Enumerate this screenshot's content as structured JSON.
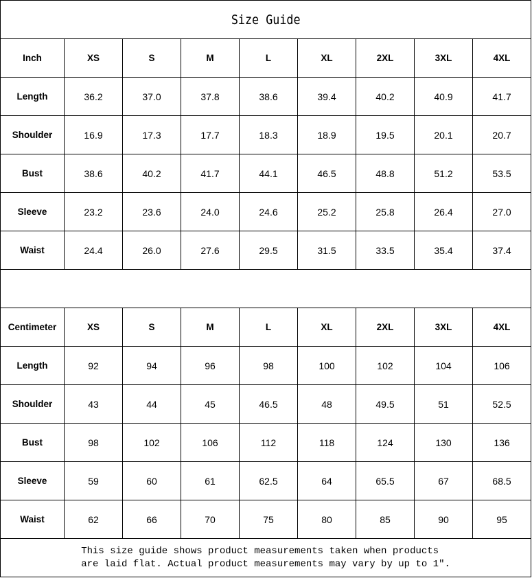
{
  "title": "Size Guide",
  "sizes": [
    "XS",
    "S",
    "M",
    "L",
    "XL",
    "2XL",
    "3XL",
    "4XL"
  ],
  "tables": [
    {
      "unit": "Inch",
      "rows": [
        {
          "label": "Length",
          "values": [
            "36.2",
            "37.0",
            "37.8",
            "38.6",
            "39.4",
            "40.2",
            "40.9",
            "41.7"
          ]
        },
        {
          "label": "Shoulder",
          "values": [
            "16.9",
            "17.3",
            "17.7",
            "18.3",
            "18.9",
            "19.5",
            "20.1",
            "20.7"
          ]
        },
        {
          "label": "Bust",
          "values": [
            "38.6",
            "40.2",
            "41.7",
            "44.1",
            "46.5",
            "48.8",
            "51.2",
            "53.5"
          ]
        },
        {
          "label": "Sleeve",
          "values": [
            "23.2",
            "23.6",
            "24.0",
            "24.6",
            "25.2",
            "25.8",
            "26.4",
            "27.0"
          ]
        },
        {
          "label": "Waist",
          "values": [
            "24.4",
            "26.0",
            "27.6",
            "29.5",
            "31.5",
            "33.5",
            "35.4",
            "37.4"
          ]
        }
      ]
    },
    {
      "unit": "Centimeter",
      "rows": [
        {
          "label": "Length",
          "values": [
            "92",
            "94",
            "96",
            "98",
            "100",
            "102",
            "104",
            "106"
          ]
        },
        {
          "label": "Shoulder",
          "values": [
            "43",
            "44",
            "45",
            "46.5",
            "48",
            "49.5",
            "51",
            "52.5"
          ]
        },
        {
          "label": "Bust",
          "values": [
            "98",
            "102",
            "106",
            "112",
            "118",
            "124",
            "130",
            "136"
          ]
        },
        {
          "label": "Sleeve",
          "values": [
            "59",
            "60",
            "61",
            "62.5",
            "64",
            "65.5",
            "67",
            "68.5"
          ]
        },
        {
          "label": "Waist",
          "values": [
            "62",
            "66",
            "70",
            "75",
            "80",
            "85",
            "90",
            "95"
          ]
        }
      ]
    }
  ],
  "note": {
    "line1": "This size guide shows product measurements taken when products",
    "line2": "are laid flat. Actual product measurements may vary by up to 1″."
  }
}
